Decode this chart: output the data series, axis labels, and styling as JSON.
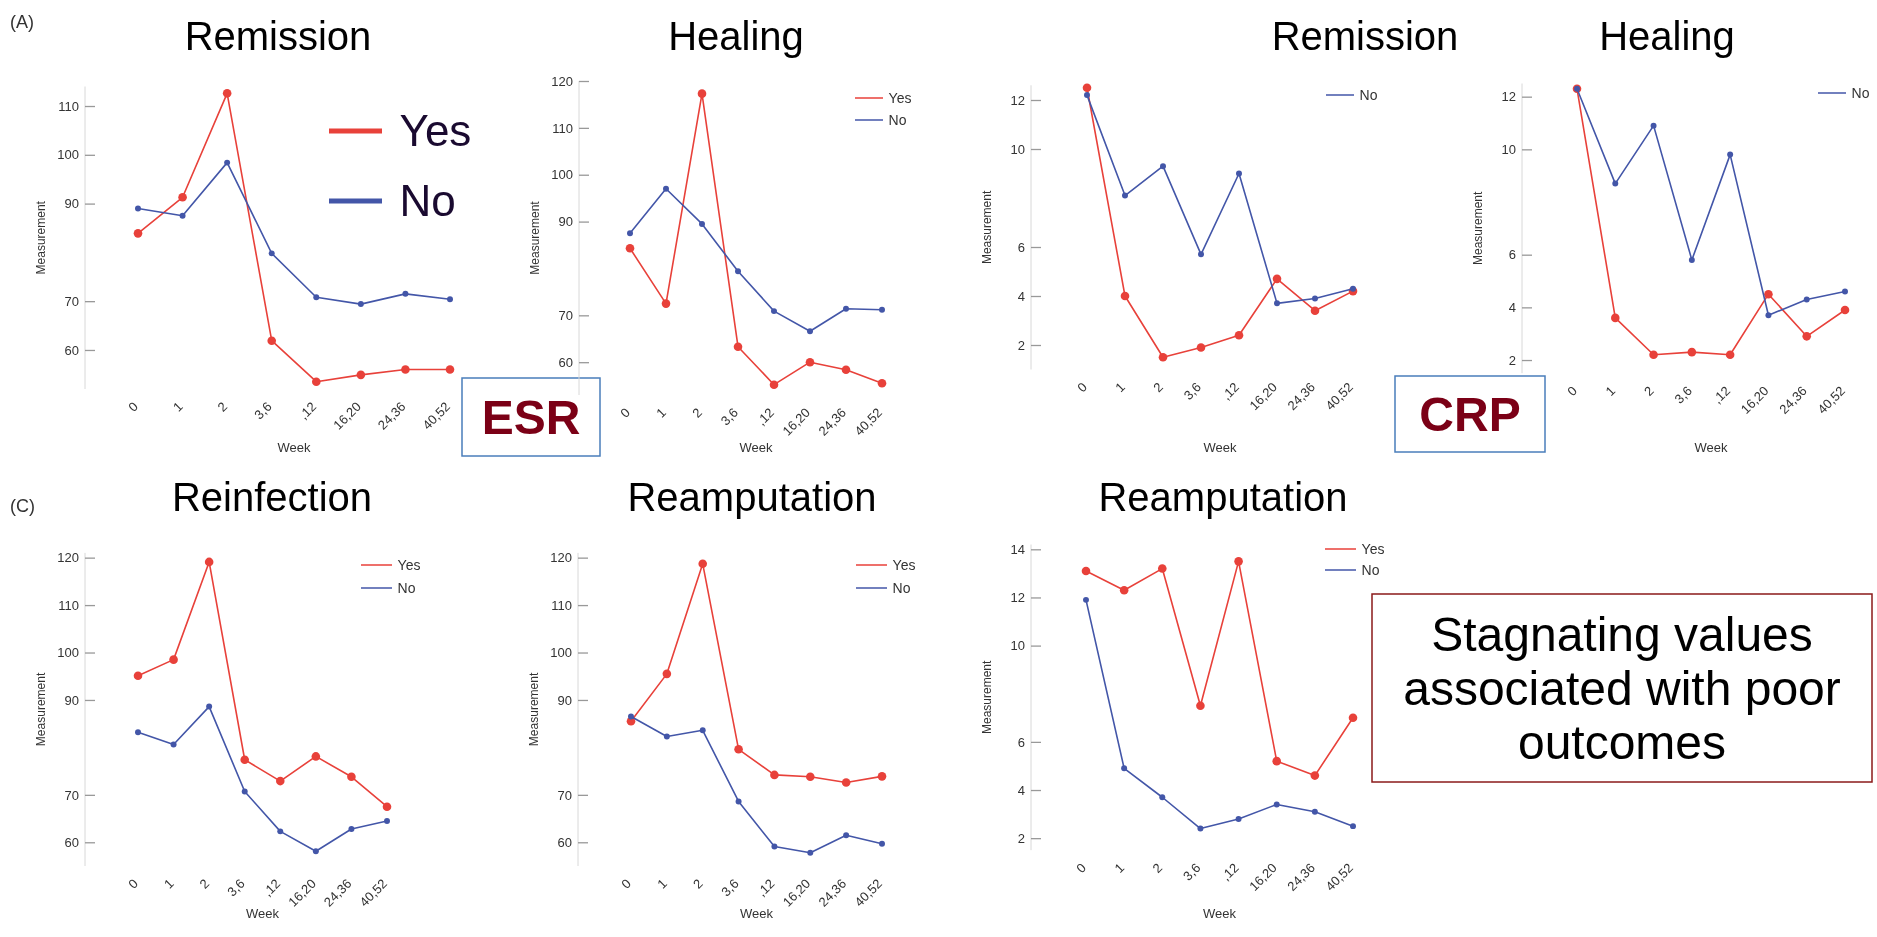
{
  "chart_data": [
    {
      "type": "line",
      "title": "Remission",
      "xlabel": "Week",
      "ylabel": "Measurement",
      "categories": [
        "0",
        "1",
        "2",
        "3,6",
        ",12",
        "16,20",
        "24,36",
        "40,52"
      ],
      "ylim": [
        52,
        114
      ],
      "yticks": [
        60,
        70,
        90,
        100,
        110
      ],
      "marker": "circle",
      "legend": "top right",
      "annotations": [
        "(A)",
        "ESR"
      ],
      "series": [
        {
          "name": "Yes",
          "color": "#e8413a",
          "values": [
            83.9,
            91.3,
            112.6,
            61.9,
            53.5,
            54.9,
            56.0,
            56.0
          ]
        },
        {
          "name": "No",
          "color": "#4356a8",
          "values": [
            89.0,
            87.5,
            98.4,
            79.8,
            70.8,
            69.4,
            71.5,
            70.4
          ]
        }
      ]
    },
    {
      "type": "line",
      "title": "Healing",
      "xlabel": "Week",
      "ylabel": "Measurement",
      "categories": [
        "0",
        "1",
        "2",
        "3,6",
        ",12",
        "16,20",
        "24,36",
        "40,52"
      ],
      "ylim": [
        53,
        120
      ],
      "yticks": [
        60,
        70,
        90,
        100,
        110,
        120
      ],
      "marker": "circle",
      "legend": "top right",
      "series": [
        {
          "name": "Yes",
          "color": "#e8413a",
          "values": [
            84.3,
            72.5,
            117.3,
            63.3,
            55.2,
            60.0,
            58.4,
            55.5
          ]
        },
        {
          "name": "No",
          "color": "#4356a8",
          "values": [
            87.5,
            97.0,
            89.5,
            79.4,
            70.9,
            66.6,
            71.4,
            71.2
          ]
        }
      ]
    },
    {
      "type": "line",
      "title": "Remission",
      "xlabel": "Week",
      "ylabel": "Measurement",
      "categories": [
        "0",
        "1",
        "2",
        "3,6",
        ",12",
        "16,20",
        "24,36",
        "40,52"
      ],
      "ylim": [
        1,
        12.6
      ],
      "yticks": [
        2,
        4,
        6,
        10,
        12
      ],
      "marker": "circle",
      "legend": "top right",
      "series": [
        {
          "color": "#e8413a",
          "values": [
            12.5,
            4.0,
            1.5,
            1.9,
            2.4,
            4.7,
            3.4,
            4.2
          ]
        },
        {
          "name": "No",
          "color": "#4356a8",
          "values": [
            12.2,
            8.1,
            9.3,
            5.7,
            9.0,
            3.7,
            3.9,
            4.3
          ]
        }
      ]
    },
    {
      "type": "line",
      "title": "Healing",
      "xlabel": "Week",
      "ylabel": "Measurement",
      "categories": [
        "0",
        "1",
        "2",
        "3,6",
        ",12",
        "16,20",
        "24,36",
        "40,52"
      ],
      "ylim": [
        1.5,
        12.5
      ],
      "yticks": [
        2,
        4,
        6,
        10,
        12
      ],
      "marker": "circle",
      "legend": "top right",
      "annotations": [
        "CRP"
      ],
      "series": [
        {
          "color": "#e8413a",
          "values": [
            12.3,
            3.6,
            2.2,
            2.3,
            2.2,
            4.5,
            2.9,
            3.9
          ]
        },
        {
          "name": "No",
          "color": "#4356a8",
          "values": [
            12.3,
            8.7,
            10.9,
            5.8,
            9.8,
            3.7,
            4.3,
            4.6
          ]
        }
      ]
    },
    {
      "type": "line",
      "title": "Reinfection",
      "xlabel": "Week",
      "ylabel": "Measurement",
      "categories": [
        "0",
        "1",
        "2",
        "3,6",
        ",12",
        "16,20",
        "24,36",
        "40,52"
      ],
      "ylim": [
        55,
        121
      ],
      "yticks": [
        60,
        70,
        90,
        100,
        110,
        120
      ],
      "marker": "circle",
      "legend": "top right",
      "annotations": [
        "(C)"
      ],
      "series": [
        {
          "name": "Yes",
          "color": "#e8413a",
          "values": [
            95.1,
            98.5,
            119.1,
            77.4,
            72.9,
            78.1,
            73.8,
            67.5
          ]
        },
        {
          "name": "No",
          "color": "#4356a8",
          "values": [
            83.2,
            80.6,
            88.6,
            70.7,
            62.3,
            58.1,
            62.8,
            64.5
          ]
        }
      ]
    },
    {
      "type": "line",
      "title": "Reamputation",
      "xlabel": "Week",
      "ylabel": "Measurement",
      "categories": [
        "0",
        "1",
        "2",
        "3,6",
        ",12",
        "16,20",
        "24,36",
        "40,52"
      ],
      "ylim": [
        55,
        121
      ],
      "yticks": [
        60,
        70,
        90,
        100,
        110,
        120
      ],
      "marker": "circle",
      "legend": "top right",
      "series": [
        {
          "name": "Yes",
          "color": "#e8413a",
          "values": [
            85.5,
            95.5,
            118.7,
            79.6,
            74.2,
            73.8,
            72.6,
            73.9
          ]
        },
        {
          "name": "No",
          "color": "#4356a8",
          "values": [
            86.5,
            82.3,
            83.6,
            68.6,
            59.1,
            57.8,
            61.5,
            59.7
          ]
        }
      ]
    },
    {
      "type": "line",
      "title": "Reamputation",
      "xlabel": "Week",
      "ylabel": "Measurement",
      "categories": [
        "0",
        "1",
        "2",
        "3,6",
        ",12",
        "16,20",
        "24,36",
        "40,52"
      ],
      "ylim": [
        1.5,
        14.2
      ],
      "yticks": [
        2,
        4,
        6,
        10,
        12,
        14
      ],
      "marker": "circle",
      "legend": "top right",
      "annotations": [
        "Stagnating values associated with poor outcomes"
      ],
      "series": [
        {
          "name": "Yes",
          "color": "#e8413a",
          "values": [
            13.1,
            12.3,
            13.2,
            7.5,
            13.5,
            5.2,
            4.6,
            7.0
          ]
        },
        {
          "name": "No",
          "color": "#4356a8",
          "values": [
            11.9,
            4.9,
            3.7,
            2.4,
            2.8,
            3.4,
            3.1,
            2.5
          ]
        }
      ]
    }
  ]
}
